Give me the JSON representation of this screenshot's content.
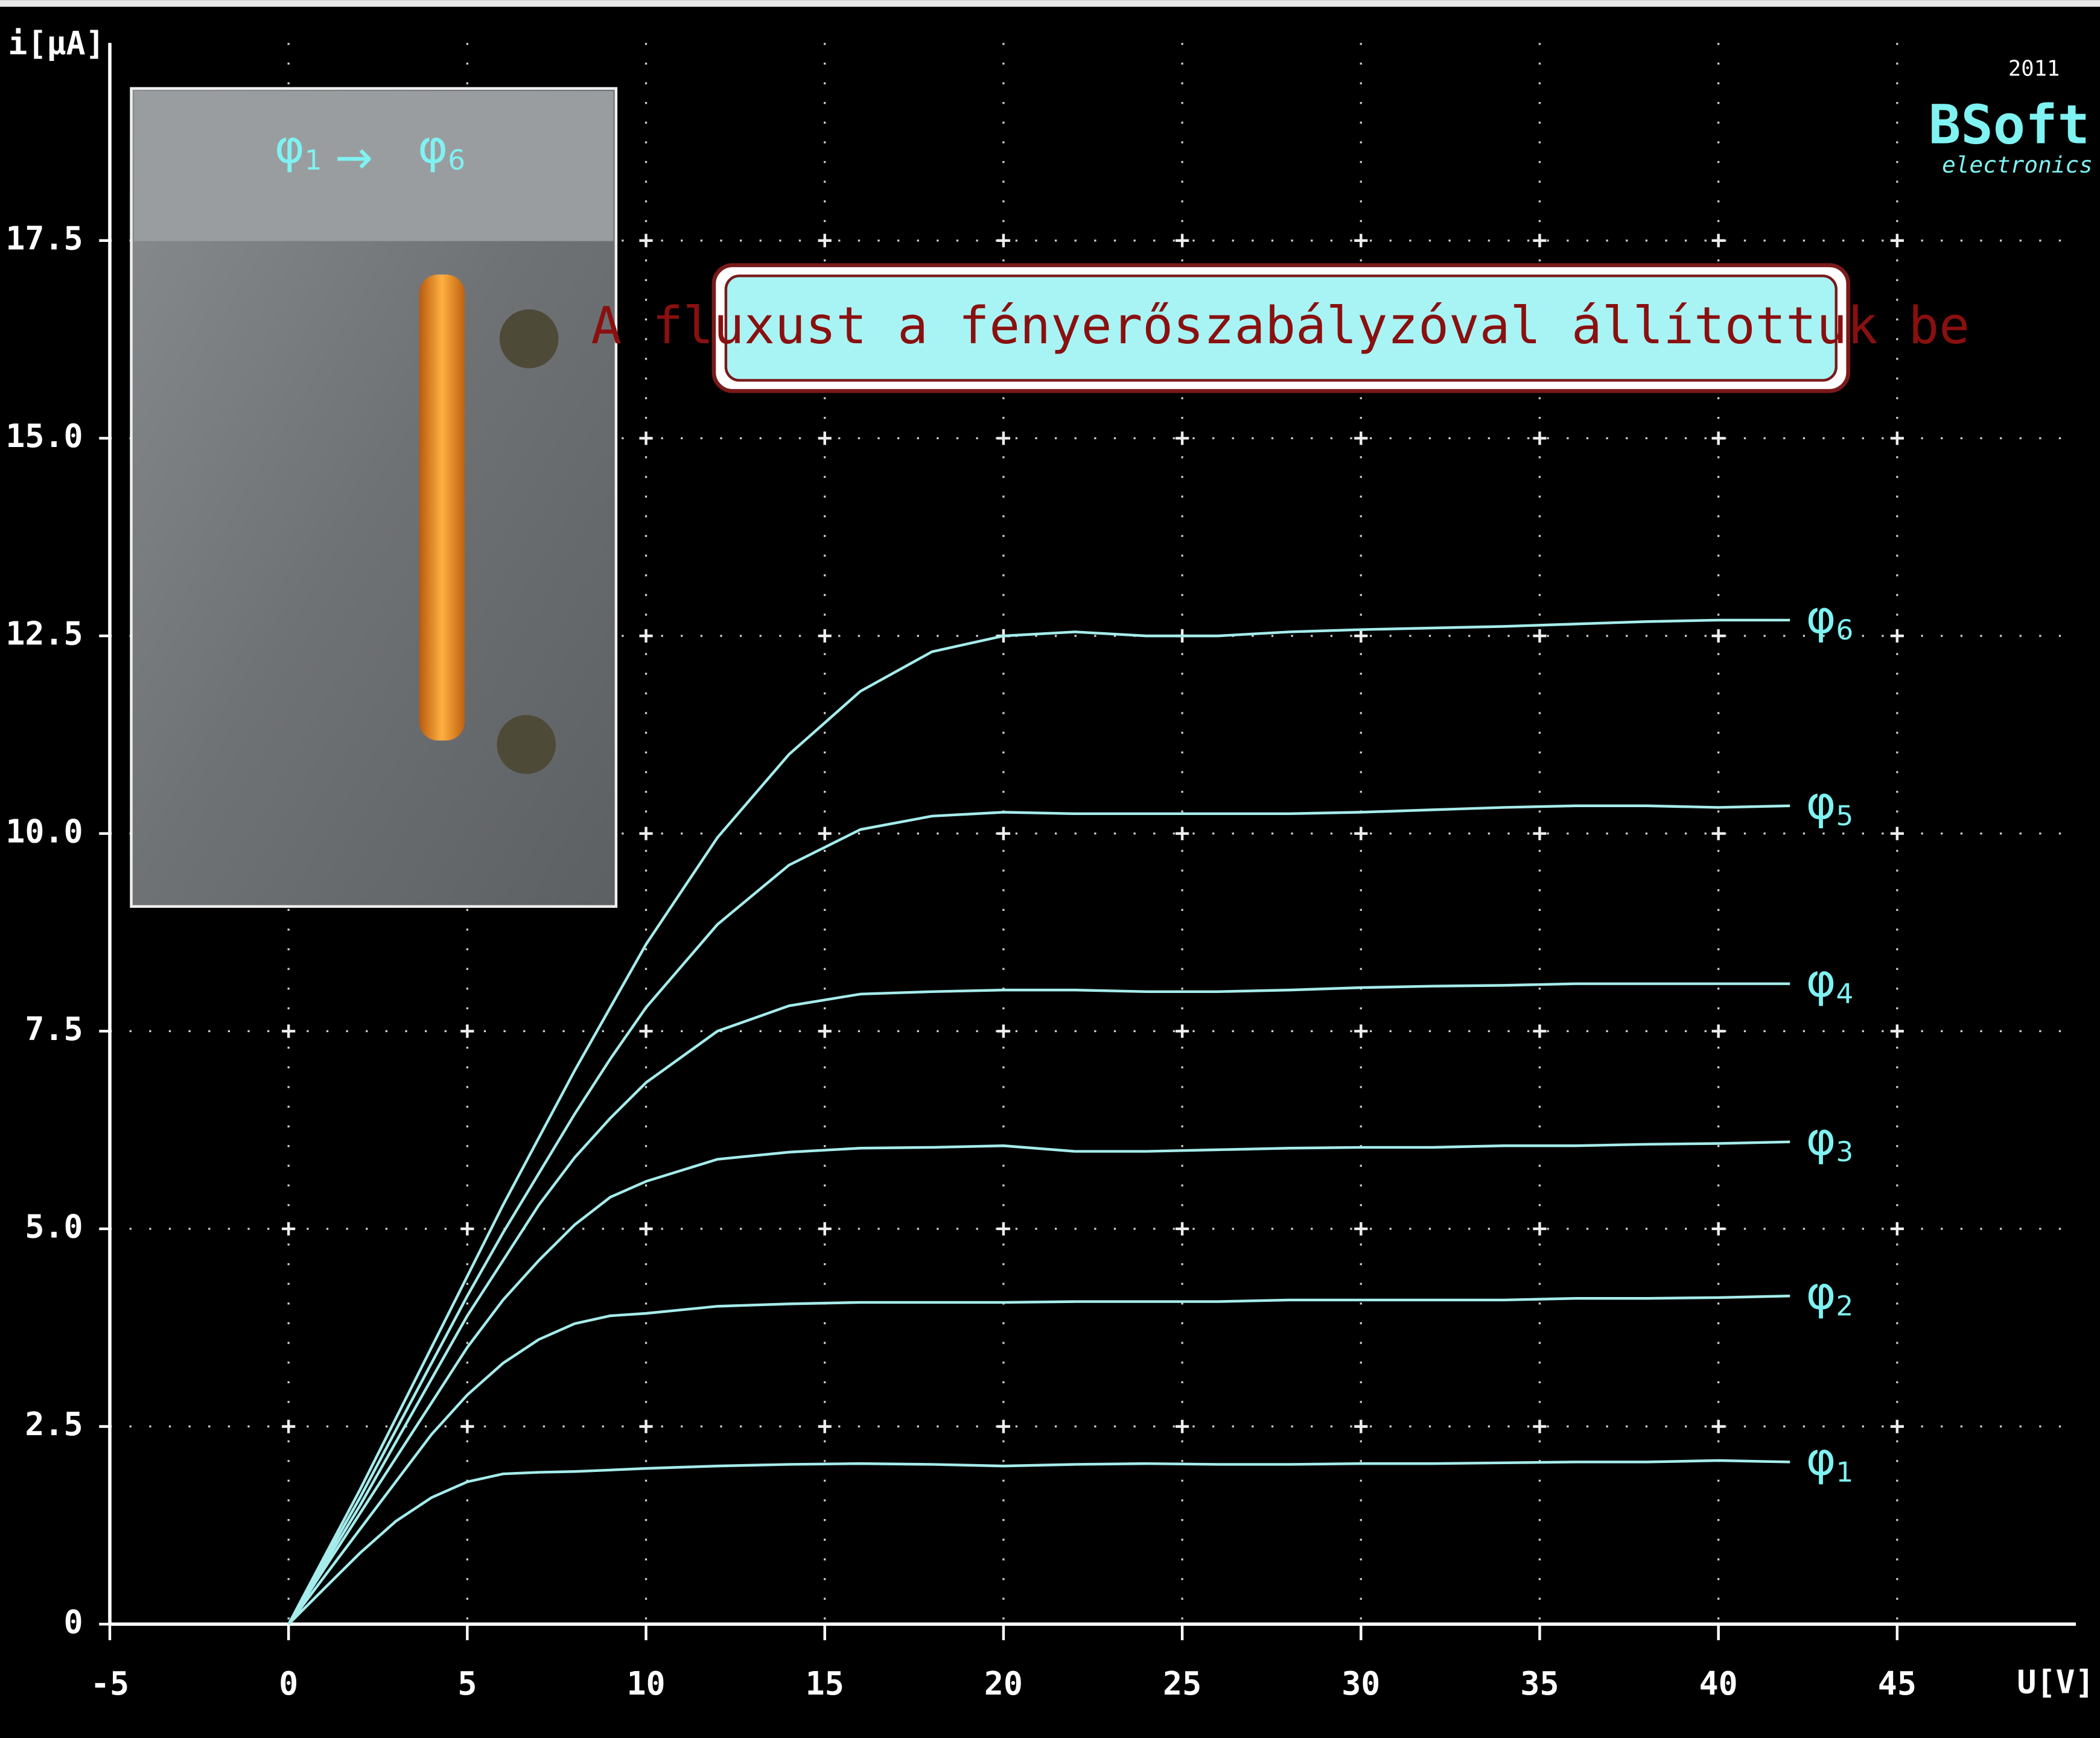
{
  "chart_data": {
    "type": "line",
    "title": "A fluxust a fényerőszabályzóval állítottuk be",
    "x_label": "U[V]",
    "y_label": "i[μA]",
    "inset_label": {
      "from": "φ1",
      "arrow": "→",
      "to": "φ6"
    },
    "logo": {
      "year": "2011",
      "name": "BSoft",
      "sub": "electronics"
    },
    "xlim": [
      -5,
      50
    ],
    "ylim": [
      0,
      20
    ],
    "xticks": [
      -5,
      0,
      5,
      10,
      15,
      20,
      25,
      30,
      35,
      40,
      45
    ],
    "yticks": [
      0,
      2.5,
      {
        "value": 5,
        "label": "5.0"
      },
      7.5,
      {
        "value": 10,
        "label": "10.0"
      },
      12.5,
      {
        "value": 15,
        "label": "15.0"
      },
      17.5
    ],
    "grid": true,
    "background": "#000000",
    "axis_color": "#ffffff",
    "x": [
      0,
      1,
      2,
      3,
      4,
      5,
      6,
      7,
      8,
      9,
      10,
      12,
      14,
      16,
      18,
      20,
      22,
      24,
      26,
      28,
      30,
      32,
      34,
      36,
      38,
      40,
      42
    ],
    "series": [
      {
        "name": "φ1",
        "color": "#a6ecec",
        "values": [
          0,
          0.45,
          0.9,
          1.3,
          1.6,
          1.8,
          1.9,
          1.92,
          1.93,
          1.95,
          1.97,
          2.0,
          2.02,
          2.03,
          2.02,
          2.0,
          2.02,
          2.03,
          2.02,
          2.02,
          2.03,
          2.03,
          2.04,
          2.05,
          2.05,
          2.07,
          2.05
        ]
      },
      {
        "name": "φ2",
        "color": "#a6ecec",
        "values": [
          0,
          0.6,
          1.2,
          1.8,
          2.4,
          2.9,
          3.3,
          3.6,
          3.8,
          3.9,
          3.93,
          4.02,
          4.05,
          4.07,
          4.07,
          4.07,
          4.08,
          4.08,
          4.08,
          4.1,
          4.1,
          4.1,
          4.1,
          4.12,
          4.12,
          4.13,
          4.15
        ]
      },
      {
        "name": "φ3",
        "color": "#a6ecec",
        "values": [
          0,
          0.7,
          1.4,
          2.1,
          2.8,
          3.5,
          4.1,
          4.6,
          5.05,
          5.4,
          5.6,
          5.88,
          5.97,
          6.02,
          6.03,
          6.05,
          5.98,
          5.98,
          6.0,
          6.02,
          6.03,
          6.03,
          6.05,
          6.05,
          6.07,
          6.08,
          6.1
        ]
      },
      {
        "name": "φ4",
        "color": "#a6ecec",
        "values": [
          0,
          0.75,
          1.5,
          2.3,
          3.1,
          3.9,
          4.6,
          5.3,
          5.9,
          6.4,
          6.85,
          7.5,
          7.82,
          7.97,
          8.0,
          8.02,
          8.02,
          8.0,
          8.0,
          8.02,
          8.05,
          8.07,
          8.08,
          8.1,
          8.1,
          8.1,
          8.1
        ]
      },
      {
        "name": "φ5",
        "color": "#a6ecec",
        "values": [
          0,
          0.8,
          1.6,
          2.45,
          3.3,
          4.15,
          4.95,
          5.7,
          6.45,
          7.15,
          7.8,
          8.85,
          9.6,
          10.05,
          10.22,
          10.27,
          10.25,
          10.25,
          10.25,
          10.25,
          10.27,
          10.3,
          10.33,
          10.35,
          10.35,
          10.33,
          10.35
        ]
      },
      {
        "name": "φ6",
        "color": "#a6ecec",
        "values": [
          0,
          0.85,
          1.7,
          2.6,
          3.5,
          4.4,
          5.3,
          6.15,
          7.0,
          7.8,
          8.6,
          9.95,
          11.0,
          11.8,
          12.3,
          12.5,
          12.55,
          12.5,
          12.5,
          12.55,
          12.58,
          12.6,
          12.62,
          12.65,
          12.68,
          12.7,
          12.7
        ]
      }
    ]
  }
}
